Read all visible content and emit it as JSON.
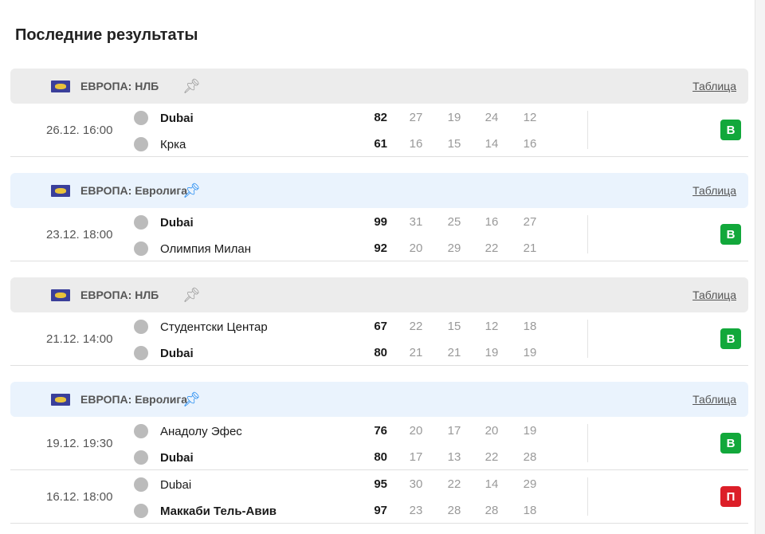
{
  "title": "Последние результаты",
  "colors": {
    "win": "#12a83b",
    "loss": "#dc1e28",
    "pinned_bg": "#eaf3fd",
    "header_bg": "#ececec"
  },
  "table_link": "Таблица",
  "sections": [
    {
      "league": "ЕВРОПА: НЛБ",
      "pinned": false,
      "matches": [
        {
          "date": "26.12. 16:00",
          "home": {
            "name": "Dubai",
            "score": "82",
            "periods": [
              "27",
              "19",
              "24",
              "12"
            ],
            "winner": true
          },
          "away": {
            "name": "Крка",
            "score": "61",
            "periods": [
              "16",
              "15",
              "14",
              "16"
            ],
            "winner": false
          },
          "result": "В"
        }
      ]
    },
    {
      "league": "ЕВРОПА: Евролига",
      "pinned": true,
      "matches": [
        {
          "date": "23.12. 18:00",
          "home": {
            "name": "Dubai",
            "score": "99",
            "periods": [
              "31",
              "25",
              "16",
              "27"
            ],
            "winner": true
          },
          "away": {
            "name": "Олимпия Милан",
            "score": "92",
            "periods": [
              "20",
              "29",
              "22",
              "21"
            ],
            "winner": false
          },
          "result": "В"
        }
      ]
    },
    {
      "league": "ЕВРОПА: НЛБ",
      "pinned": false,
      "matches": [
        {
          "date": "21.12. 14:00",
          "home": {
            "name": "Студентски Центар",
            "score": "67",
            "periods": [
              "22",
              "15",
              "12",
              "18"
            ],
            "winner": false
          },
          "away": {
            "name": "Dubai",
            "score": "80",
            "periods": [
              "21",
              "21",
              "19",
              "19"
            ],
            "winner": true
          },
          "result": "В"
        }
      ]
    },
    {
      "league": "ЕВРОПА: Евролига",
      "pinned": true,
      "matches": [
        {
          "date": "19.12. 19:30",
          "home": {
            "name": "Анадолу Эфес",
            "score": "76",
            "periods": [
              "20",
              "17",
              "20",
              "19"
            ],
            "winner": false
          },
          "away": {
            "name": "Dubai",
            "score": "80",
            "periods": [
              "17",
              "13",
              "22",
              "28"
            ],
            "winner": true
          },
          "result": "В"
        },
        {
          "date": "16.12. 18:00",
          "home": {
            "name": "Dubai",
            "score": "95",
            "periods": [
              "30",
              "22",
              "14",
              "29"
            ],
            "winner": false
          },
          "away": {
            "name": "Маккаби Тель-Авив",
            "score": "97",
            "periods": [
              "23",
              "28",
              "28",
              "18"
            ],
            "winner": true
          },
          "result": "П"
        }
      ]
    }
  ]
}
